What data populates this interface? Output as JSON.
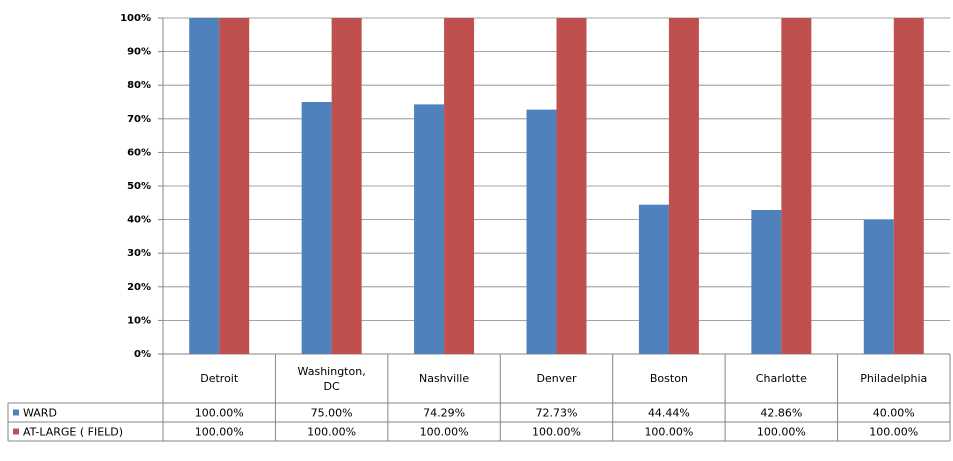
{
  "chart_data": {
    "type": "bar",
    "categories": [
      "Detroit",
      "Washington, DC",
      "Nashville",
      "Denver",
      "Boston",
      "Charlotte",
      "Philadelphia"
    ],
    "series": [
      {
        "name": "WARD",
        "color": "#4f81bd",
        "values": [
          100,
          75,
          74.29,
          72.73,
          44.44,
          42.86,
          40
        ],
        "value_labels": [
          "100.00%",
          "75.00%",
          "74.29%",
          "72.73%",
          "44.44%",
          "42.86%",
          "40.00%"
        ]
      },
      {
        "name": "AT-LARGE ( FIELD)",
        "color": "#c0504d",
        "values": [
          100,
          100,
          100,
          100,
          100,
          100,
          100
        ],
        "value_labels": [
          "100.00%",
          "100.00%",
          "100.00%",
          "100.00%",
          "100.00%",
          "100.00%",
          "100.00%"
        ]
      }
    ],
    "ylim": [
      0,
      100
    ],
    "yticks": [
      {
        "value": 0,
        "label": "0%"
      },
      {
        "value": 10,
        "label": "10%"
      },
      {
        "value": 20,
        "label": "20%"
      },
      {
        "value": 30,
        "label": "30%"
      },
      {
        "value": 40,
        "label": "40%"
      },
      {
        "value": 50,
        "label": "50%"
      },
      {
        "value": 60,
        "label": "60%"
      },
      {
        "value": 70,
        "label": "70%"
      },
      {
        "value": 80,
        "label": "80%"
      },
      {
        "value": 90,
        "label": "90%"
      },
      {
        "value": 100,
        "label": "100%"
      }
    ],
    "grid": true
  }
}
